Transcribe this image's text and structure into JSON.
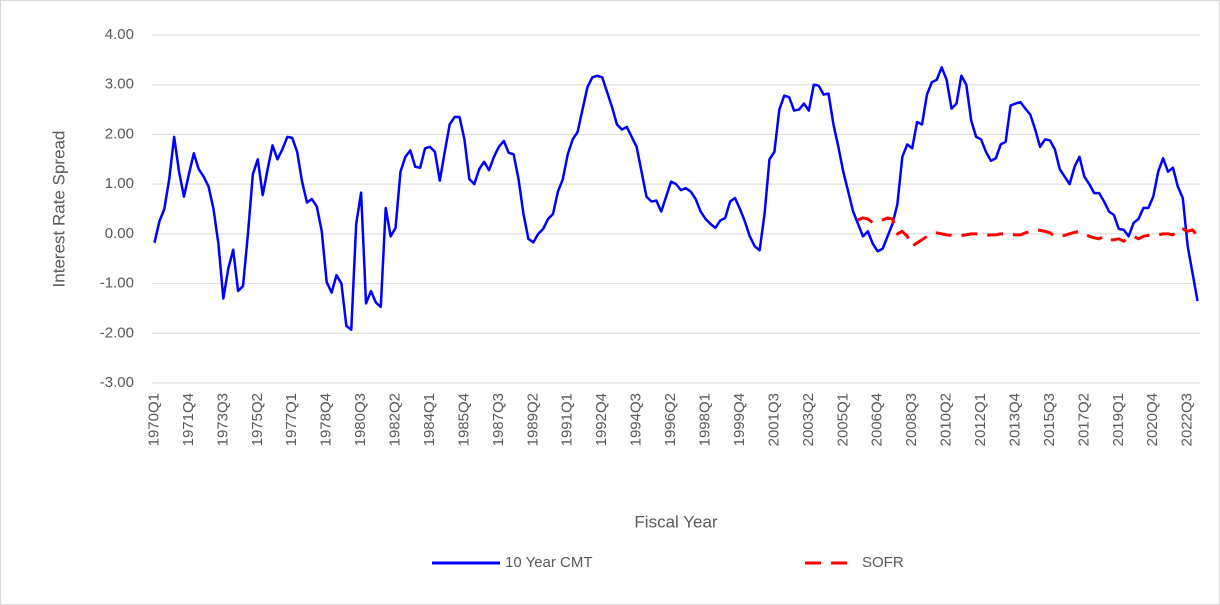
{
  "chart_data": {
    "type": "line",
    "x_label": "Fiscal Year",
    "y_label": "Interest Rate Spread",
    "categories": [
      "1970Q1",
      null,
      null,
      null,
      null,
      null,
      null,
      "1971Q4",
      null,
      null,
      null,
      null,
      null,
      null,
      "1973Q3",
      null,
      null,
      null,
      null,
      null,
      null,
      "1975Q2",
      null,
      null,
      null,
      null,
      null,
      null,
      "1977Q1",
      null,
      null,
      null,
      null,
      null,
      null,
      "1978Q4",
      null,
      null,
      null,
      null,
      null,
      null,
      "1980Q3",
      null,
      null,
      null,
      null,
      null,
      null,
      "1982Q2",
      null,
      null,
      null,
      null,
      null,
      null,
      "1984Q1",
      null,
      null,
      null,
      null,
      null,
      null,
      "1985Q4",
      null,
      null,
      null,
      null,
      null,
      null,
      "1987Q3",
      null,
      null,
      null,
      null,
      null,
      null,
      "1989Q2",
      null,
      null,
      null,
      null,
      null,
      null,
      "1991Q1",
      null,
      null,
      null,
      null,
      null,
      null,
      "1992Q4",
      null,
      null,
      null,
      null,
      null,
      null,
      "1994Q3",
      null,
      null,
      null,
      null,
      null,
      null,
      "1996Q2",
      null,
      null,
      null,
      null,
      null,
      null,
      "1998Q1",
      null,
      null,
      null,
      null,
      null,
      null,
      "1999Q4",
      null,
      null,
      null,
      null,
      null,
      null,
      "2001Q3",
      null,
      null,
      null,
      null,
      null,
      null,
      "2003Q2",
      null,
      null,
      null,
      null,
      null,
      null,
      "2005Q1",
      null,
      null,
      null,
      null,
      null,
      null,
      "2006Q4",
      null,
      null,
      null,
      null,
      null,
      null,
      "2008Q3",
      null,
      null,
      null,
      null,
      null,
      null,
      "2010Q2",
      null,
      null,
      null,
      null,
      null,
      null,
      "2012Q1",
      null,
      null,
      null,
      null,
      null,
      null,
      "2013Q4",
      null,
      null,
      null,
      null,
      null,
      null,
      "2015Q3",
      null,
      null,
      null,
      null,
      null,
      null,
      "2017Q2",
      null,
      null,
      null,
      null,
      null,
      null,
      "2019Q1",
      null,
      null,
      null,
      null,
      null,
      null,
      "2020Q4",
      null,
      null,
      null,
      null,
      null,
      null,
      "2022Q3",
      null,
      null
    ],
    "series": [
      {
        "name": "10 Year CMT",
        "color": "#0000ff",
        "dash": false,
        "values": [
          -0.18,
          0.25,
          0.5,
          1.1,
          1.95,
          1.25,
          0.75,
          1.2,
          1.62,
          1.3,
          1.15,
          0.95,
          0.5,
          -0.2,
          -1.3,
          -0.7,
          -0.32,
          -1.15,
          -1.05,
          0.0,
          1.2,
          1.5,
          0.78,
          1.3,
          1.78,
          1.5,
          1.7,
          1.95,
          1.93,
          1.65,
          1.05,
          0.63,
          0.7,
          0.55,
          0.05,
          -0.97,
          -1.18,
          -0.83,
          -1.0,
          -1.85,
          -1.93,
          0.2,
          0.83,
          -1.4,
          -1.15,
          -1.38,
          -1.47,
          0.52,
          -0.05,
          0.12,
          1.25,
          1.55,
          1.68,
          1.35,
          1.33,
          1.72,
          1.75,
          1.65,
          1.07,
          1.65,
          2.2,
          2.35,
          2.35,
          1.9,
          1.1,
          1.0,
          1.3,
          1.45,
          1.28,
          1.55,
          1.75,
          1.87,
          1.63,
          1.6,
          1.1,
          0.4,
          -0.1,
          -0.17,
          0.0,
          0.1,
          0.3,
          0.4,
          0.85,
          1.1,
          1.6,
          1.9,
          2.05,
          2.5,
          2.95,
          3.15,
          3.18,
          3.15,
          2.85,
          2.55,
          2.2,
          2.1,
          2.15,
          1.95,
          1.75,
          1.25,
          0.75,
          0.65,
          0.67,
          0.45,
          0.75,
          1.05,
          1.0,
          0.88,
          0.92,
          0.85,
          0.7,
          0.45,
          0.3,
          0.2,
          0.12,
          0.27,
          0.32,
          0.65,
          0.72,
          0.5,
          0.25,
          -0.05,
          -0.25,
          -0.33,
          0.4,
          1.5,
          1.65,
          2.5,
          2.78,
          2.75,
          2.48,
          2.5,
          2.62,
          2.48,
          3.0,
          2.98,
          2.8,
          2.82,
          2.2,
          1.75,
          1.25,
          0.85,
          0.45,
          0.2,
          -0.05,
          0.05,
          -0.2,
          -0.35,
          -0.3,
          -0.05,
          0.2,
          0.6,
          1.55,
          1.8,
          1.72,
          2.25,
          2.2,
          2.8,
          3.05,
          3.1,
          3.35,
          3.1,
          2.52,
          2.62,
          3.18,
          3.0,
          2.28,
          1.95,
          1.9,
          1.65,
          1.47,
          1.52,
          1.8,
          1.85,
          2.58,
          2.62,
          2.65,
          2.52,
          2.4,
          2.1,
          1.75,
          1.9,
          1.88,
          1.7,
          1.3,
          1.15,
          1.0,
          1.35,
          1.55,
          1.15,
          1.0,
          0.82,
          0.82,
          0.65,
          0.45,
          0.38,
          0.1,
          0.08,
          -0.05,
          0.22,
          0.3,
          0.52,
          0.52,
          0.75,
          1.25,
          1.52,
          1.25,
          1.33,
          0.95,
          0.72,
          -0.25,
          -0.8,
          -1.35
        ]
      },
      {
        "name": "SOFR",
        "color": "#ff0000",
        "dash": true,
        "values": [
          null,
          null,
          null,
          null,
          null,
          null,
          null,
          null,
          null,
          null,
          null,
          null,
          null,
          null,
          null,
          null,
          null,
          null,
          null,
          null,
          null,
          null,
          null,
          null,
          null,
          null,
          null,
          null,
          null,
          null,
          null,
          null,
          null,
          null,
          null,
          null,
          null,
          null,
          null,
          null,
          null,
          null,
          null,
          null,
          null,
          null,
          null,
          null,
          null,
          null,
          null,
          null,
          null,
          null,
          null,
          null,
          null,
          null,
          null,
          null,
          null,
          null,
          null,
          null,
          null,
          null,
          null,
          null,
          null,
          null,
          null,
          null,
          null,
          null,
          null,
          null,
          null,
          null,
          null,
          null,
          null,
          null,
          null,
          null,
          null,
          null,
          null,
          null,
          null,
          null,
          null,
          null,
          null,
          null,
          null,
          null,
          null,
          null,
          null,
          null,
          null,
          null,
          null,
          null,
          null,
          null,
          null,
          null,
          null,
          null,
          null,
          null,
          null,
          null,
          null,
          null,
          null,
          null,
          null,
          null,
          null,
          null,
          null,
          null,
          null,
          null,
          null,
          null,
          null,
          null,
          null,
          null,
          null,
          null,
          null,
          null,
          null,
          null,
          null,
          null,
          null,
          null,
          null,
          0.28,
          0.32,
          0.3,
          0.22,
          0.25,
          0.28,
          0.32,
          0.3,
          0.0,
          0.05,
          -0.05,
          -0.25,
          -0.18,
          -0.12,
          -0.05,
          0.0,
          0.02,
          0.0,
          -0.02,
          -0.03,
          -0.05,
          -0.03,
          -0.02,
          0.0,
          0.0,
          -0.02,
          -0.03,
          -0.02,
          -0.02,
          0.0,
          0.0,
          0.0,
          -0.02,
          -0.02,
          0.02,
          0.05,
          0.08,
          0.07,
          0.05,
          0.02,
          -0.05,
          -0.05,
          -0.03,
          0.0,
          0.03,
          0.05,
          0.0,
          -0.05,
          -0.08,
          -0.1,
          -0.05,
          -0.12,
          -0.12,
          -0.1,
          -0.15,
          -0.08,
          -0.05,
          -0.1,
          -0.05,
          -0.03,
          0.0,
          -0.02,
          0.0,
          0.0,
          -0.02,
          0.1,
          0.1,
          0.05,
          0.08,
          -0.05
        ]
      }
    ],
    "ylim": [
      -3,
      4
    ],
    "yticks": [
      {
        "value": 4,
        "label": "4.00"
      },
      {
        "value": 3,
        "label": "3.00"
      },
      {
        "value": 2,
        "label": "2.00"
      },
      {
        "value": 1,
        "label": "1.00"
      },
      {
        "value": 0,
        "label": "0.00"
      },
      {
        "value": -1,
        "label": "-1.00"
      },
      {
        "value": -2,
        "label": "-2.00"
      },
      {
        "value": -3,
        "label": "-3.00"
      }
    ],
    "grid": true,
    "legend": "bottom"
  }
}
